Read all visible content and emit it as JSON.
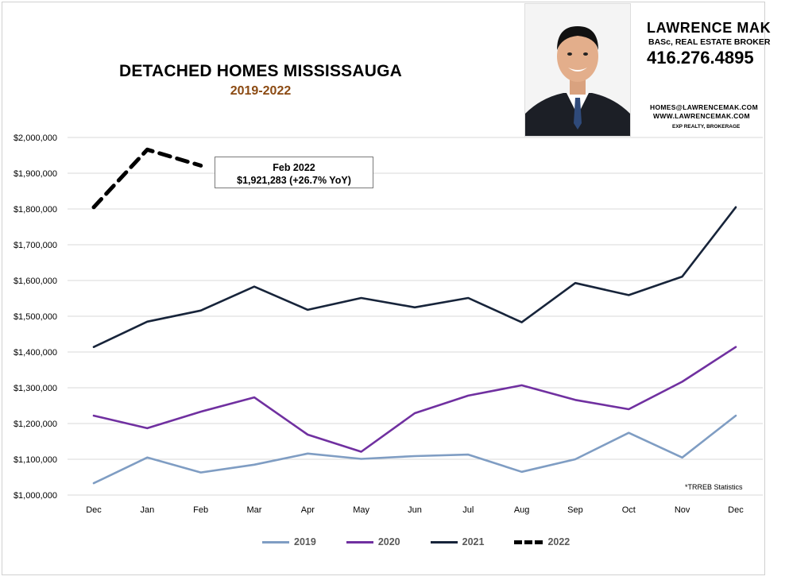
{
  "header": {
    "title": "DETACHED HOMES MISSISSAUGA",
    "subtitle": "2019-2022"
  },
  "agent": {
    "name": "LAWRENCE MAK",
    "role": "BASc, REAL ESTATE BROKER",
    "phone": "416.276.4895",
    "email": "HOMES@LAWRENCEMAK.COM",
    "website": "WWW.LAWRENCEMAK.COM",
    "brokerage": "EXP REALTY, BROKERAGE"
  },
  "callout": {
    "line1": "Feb 2022",
    "line2": "$1,921,283  (+26.7%  YoY)"
  },
  "source_note": "*TRREB Statistics",
  "colors": {
    "2019": "#7f9dc3",
    "2020": "#7030a0",
    "2021": "#17243a",
    "2022": "#000000"
  },
  "chart_data": {
    "type": "line",
    "title": "DETACHED HOMES MISSISSAUGA",
    "subtitle": "2019-2022",
    "categories": [
      "Dec",
      "Jan",
      "Feb",
      "Mar",
      "Apr",
      "May",
      "Jun",
      "Jul",
      "Aug",
      "Sep",
      "Oct",
      "Nov",
      "Dec"
    ],
    "ylim": [
      1000000,
      2000000
    ],
    "yticks": [
      1000000,
      1100000,
      1200000,
      1300000,
      1400000,
      1500000,
      1600000,
      1700000,
      1800000,
      1900000,
      2000000
    ],
    "ytick_labels": [
      "$1,000,000",
      "$1,100,000",
      "$1,200,000",
      "$1,300,000",
      "$1,400,000",
      "$1,500,000",
      "$1,600,000",
      "$1,700,000",
      "$1,800,000",
      "$1,900,000",
      "$2,000,000"
    ],
    "grid": true,
    "legend_position": "bottom",
    "series": [
      {
        "name": "2019",
        "color": "#7f9dc3",
        "style": "solid",
        "values": [
          1033000,
          1105000,
          1063000,
          1085000,
          1116000,
          1101000,
          1109000,
          1113000,
          1065000,
          1100000,
          1174000,
          1105000,
          1222000
        ]
      },
      {
        "name": "2020",
        "color": "#7030a0",
        "style": "solid",
        "values": [
          1222000,
          1187000,
          1233000,
          1273000,
          1169000,
          1121000,
          1229000,
          1278000,
          1307000,
          1266000,
          1240000,
          1317000,
          1414000
        ]
      },
      {
        "name": "2021",
        "color": "#17243a",
        "style": "solid",
        "values": [
          1414000,
          1485000,
          1516000,
          1583000,
          1518000,
          1551000,
          1525000,
          1551000,
          1483000,
          1593000,
          1559000,
          1611000,
          1805000
        ]
      },
      {
        "name": "2022",
        "color": "#000000",
        "style": "dashed",
        "values": [
          1805000,
          1966000,
          1921283,
          null,
          null,
          null,
          null,
          null,
          null,
          null,
          null,
          null,
          null
        ]
      }
    ]
  }
}
